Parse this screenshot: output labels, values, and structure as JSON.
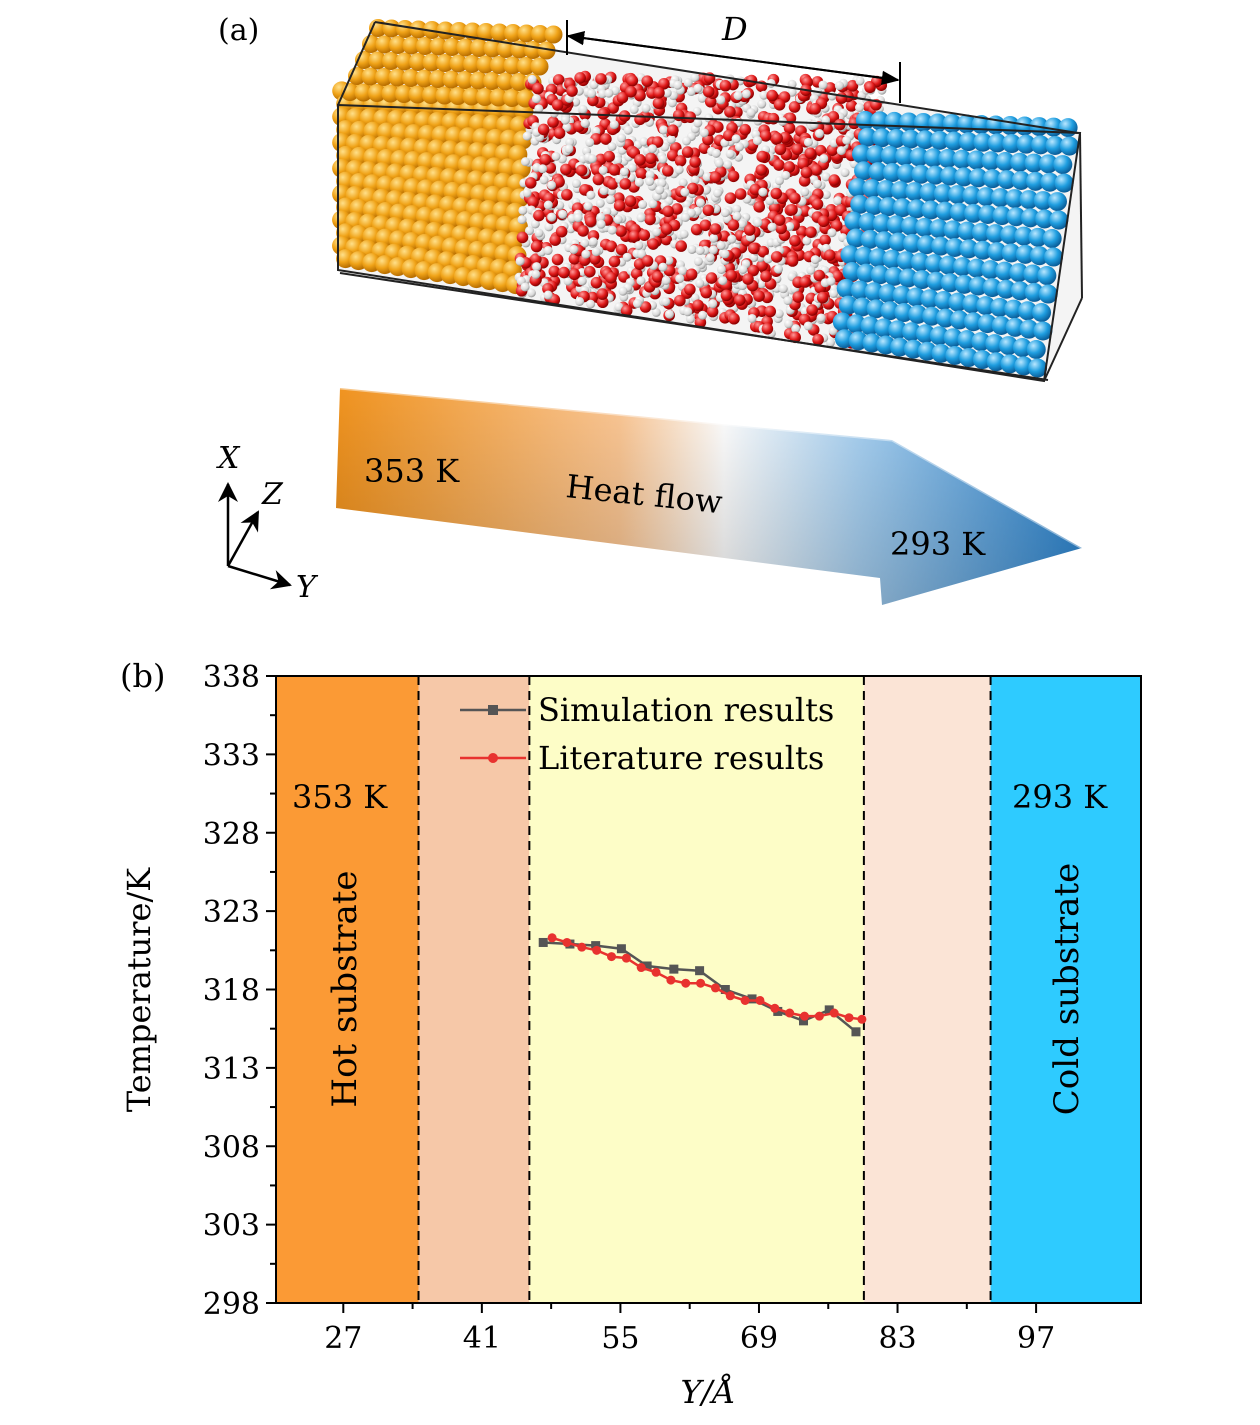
{
  "panel_a": {
    "label": "(a)",
    "dimension_label": "D",
    "hot_temperature": "353 K",
    "cold_temperature": "293 K",
    "arrow_label": "Heat flow",
    "axes": {
      "x": "X",
      "z": "Z",
      "y": "Y"
    },
    "colors": {
      "hot_atoms": "#f0a318",
      "cold_atoms": "#1f9ee0",
      "oxygen": "#e01919",
      "hydrogen": "#d9d9d9"
    }
  },
  "panel_b": {
    "label": "(b)",
    "hot_label": "Hot substrate",
    "cold_label": "Cold substrate",
    "hot_temperature": "353 K",
    "cold_temperature": "293 K"
  },
  "chart_data": {
    "type": "line",
    "xlabel": "Y/Å",
    "ylabel": "Temperature/K",
    "xlim": [
      20.2,
      107.6
    ],
    "ylim": [
      298,
      338
    ],
    "xticks": [
      27,
      41,
      55,
      69,
      83,
      97
    ],
    "yticks": [
      298,
      303,
      308,
      313,
      318,
      323,
      328,
      333,
      338
    ],
    "legend_position": "top-center",
    "regions": [
      {
        "from": 20.2,
        "to": 34.6,
        "color": "#fb9a35",
        "label": "Hot substrate"
      },
      {
        "from": 34.6,
        "to": 45.8,
        "color": "#f6c8a8"
      },
      {
        "from": 45.8,
        "to": 79.6,
        "color": "#fdfdc7"
      },
      {
        "from": 79.6,
        "to": 92.4,
        "color": "#fbe4d6"
      },
      {
        "from": 92.4,
        "to": 107.6,
        "color": "#2ecbff",
        "label": "Cold substrate"
      }
    ],
    "dividers": [
      34.6,
      45.8,
      79.6,
      92.4
    ],
    "series": [
      {
        "name": "Simulation results",
        "color": "#555555",
        "marker": "square",
        "x": [
          47.2,
          49.9,
          52.5,
          55.1,
          57.7,
          60.4,
          63.0,
          65.6,
          68.3,
          70.9,
          73.5,
          76.1,
          78.8
        ],
        "y": [
          321.0,
          320.9,
          320.8,
          320.6,
          319.5,
          319.3,
          319.2,
          318.0,
          317.4,
          316.6,
          316.0,
          316.7,
          315.3
        ]
      },
      {
        "name": "Literature results",
        "color": "#e8322f",
        "marker": "circle",
        "x": [
          48.1,
          49.6,
          51.1,
          52.6,
          54.1,
          55.6,
          57.1,
          58.6,
          60.1,
          61.6,
          63.1,
          64.6,
          66.1,
          67.6,
          69.1,
          70.6,
          72.1,
          73.6,
          75.1,
          76.6,
          78.1,
          79.4
        ],
        "y": [
          321.3,
          321.0,
          320.7,
          320.5,
          320.1,
          320.0,
          319.4,
          319.1,
          318.6,
          318.4,
          318.4,
          318.1,
          317.6,
          317.3,
          317.3,
          316.8,
          316.5,
          316.3,
          316.3,
          316.5,
          316.2,
          316.1
        ]
      }
    ]
  }
}
